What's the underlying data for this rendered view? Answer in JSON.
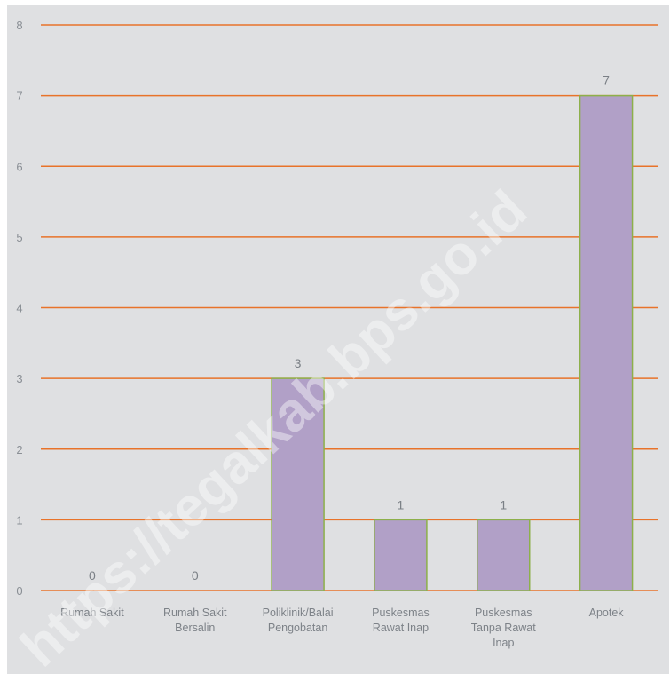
{
  "chart_data": {
    "type": "bar",
    "categories": [
      [
        "Rumah Sakit"
      ],
      [
        "Rumah Sakit",
        "Bersalin"
      ],
      [
        "Poliklinik/Balai",
        "Pengobatan"
      ],
      [
        "Puskesmas",
        "Rawat Inap"
      ],
      [
        "Puskesmas",
        "Tanpa Rawat",
        "Inap"
      ],
      [
        "Apotek"
      ]
    ],
    "values": [
      0,
      0,
      3,
      1,
      1,
      7
    ],
    "data_labels": [
      "0",
      "0",
      "3",
      "1",
      "1",
      "7"
    ],
    "ylim": [
      0,
      8
    ],
    "yticks": [
      "0",
      "1",
      "2",
      "3",
      "4",
      "5",
      "6",
      "7",
      "8"
    ],
    "grid": true,
    "title": "",
    "xlabel": "",
    "ylabel": "",
    "colors": {
      "bar_fill": "#b1a0c7",
      "bar_stroke": "#8db04a",
      "gridline": "#e8732a",
      "background": "#dfe0e2"
    }
  },
  "watermark": "https://tegalkab.bps.go.id"
}
